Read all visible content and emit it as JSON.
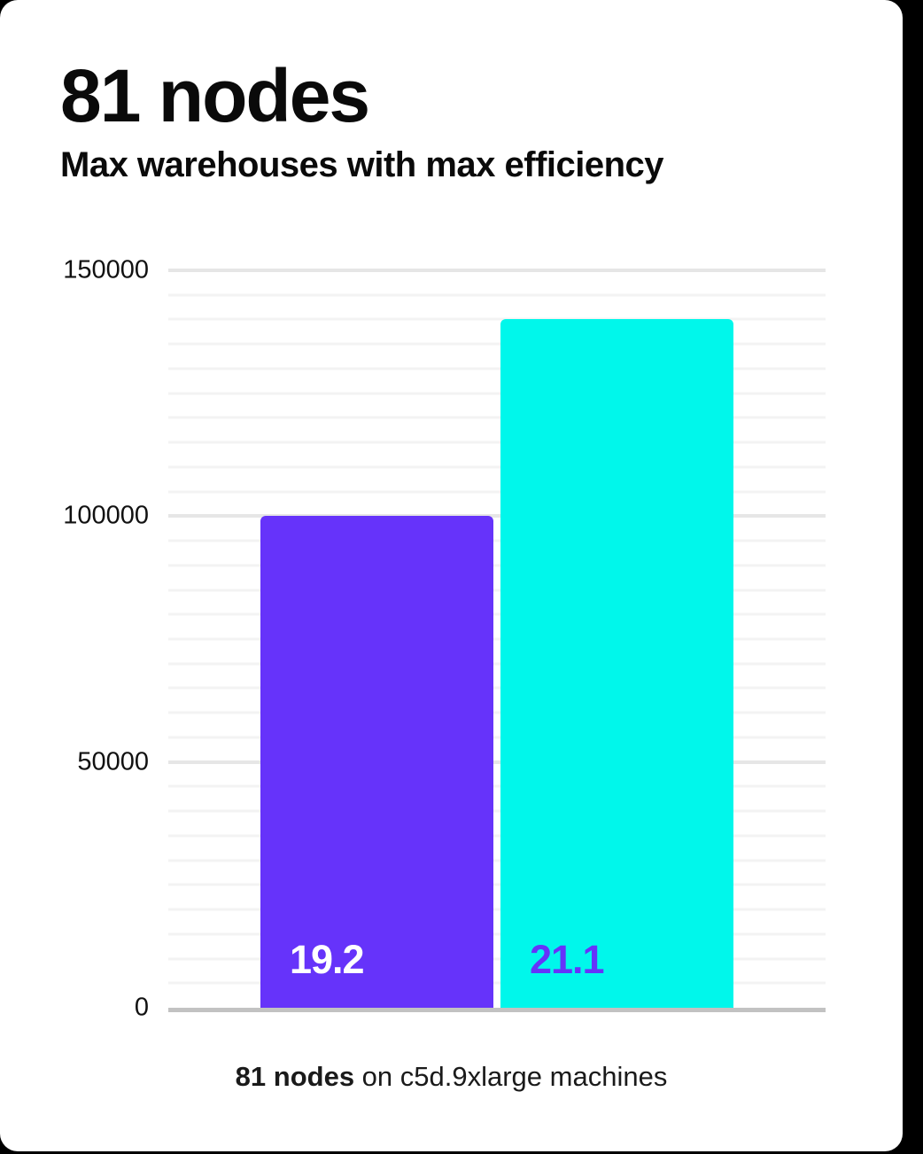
{
  "page": {
    "background_color": "#000000",
    "card_color": "#ffffff"
  },
  "header": {
    "title": "81 nodes",
    "subtitle": "Max warehouses with max efficiency"
  },
  "chart_data": {
    "type": "bar",
    "title": "81 nodes",
    "subtitle": "Max warehouses with max efficiency",
    "categories": [
      "19.2",
      "21.1"
    ],
    "values": [
      100000,
      140000
    ],
    "bar_labels": [
      "19.2",
      "21.1"
    ],
    "bar_colors": [
      "#6633FA",
      "#00F7EB"
    ],
    "bar_label_colors": [
      "#FFFFFF",
      "#6633FA"
    ],
    "xlabel": "",
    "ylabel": "",
    "ylim": [
      0,
      150000
    ],
    "y_ticks": [
      "0",
      "50000",
      "100000",
      "150000"
    ],
    "y_tick_values": [
      0,
      50000,
      100000,
      150000
    ],
    "y_major_step": 50000,
    "y_minor_step": 5000,
    "grid": true,
    "legend": false,
    "grid_minor_color": "#F3F3F3",
    "grid_major_color": "#E6E6E6",
    "axis_line_color": "#C2C2C2"
  },
  "caption": {
    "bold": "81 nodes",
    "rest": " on c5d.9xlarge machines"
  }
}
